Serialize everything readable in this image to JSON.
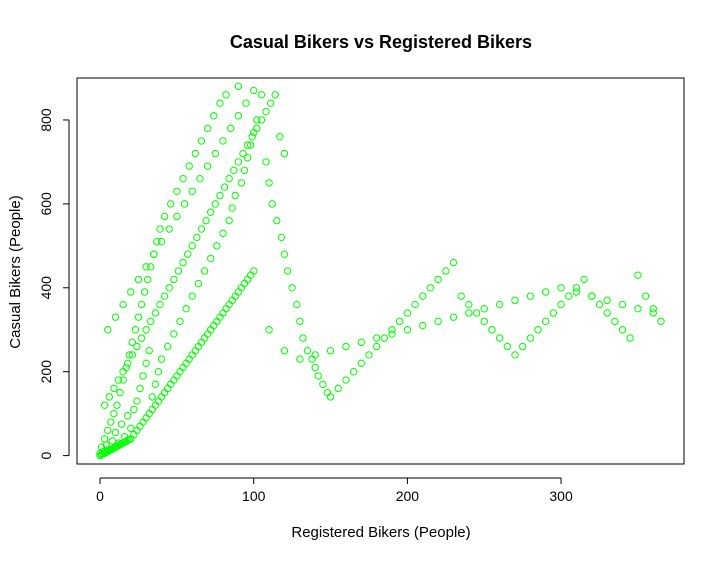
{
  "chart_data": {
    "type": "scatter",
    "title": "Casual Bikers vs Registered Bikers",
    "xlabel": "Registered Bikers (People)",
    "ylabel": "Casual Bikers (People)",
    "xlim": [
      -15,
      380
    ],
    "ylim": [
      -20,
      900
    ],
    "xticks": [
      0,
      100,
      200,
      300
    ],
    "yticks": [
      0,
      200,
      400,
      600,
      800
    ],
    "grid": false,
    "legend": "none",
    "point_color": "#00ff00",
    "series": [
      {
        "points": [
          [
            0,
            5
          ],
          [
            1,
            20
          ],
          [
            2,
            10
          ],
          [
            3,
            40
          ],
          [
            4,
            25
          ],
          [
            5,
            60
          ],
          [
            6,
            15
          ],
          [
            7,
            80
          ],
          [
            8,
            35
          ],
          [
            9,
            100
          ],
          [
            10,
            55
          ],
          [
            11,
            120
          ],
          [
            12,
            30
          ],
          [
            13,
            150
          ],
          [
            14,
            75
          ],
          [
            15,
            180
          ],
          [
            16,
            45
          ],
          [
            17,
            210
          ],
          [
            18,
            95
          ],
          [
            19,
            240
          ],
          [
            20,
            65
          ],
          [
            21,
            270
          ],
          [
            22,
            110
          ],
          [
            23,
            300
          ],
          [
            24,
            130
          ],
          [
            25,
            330
          ],
          [
            26,
            160
          ],
          [
            27,
            360
          ],
          [
            28,
            190
          ],
          [
            29,
            390
          ],
          [
            30,
            220
          ],
          [
            31,
            420
          ],
          [
            32,
            250
          ],
          [
            33,
            450
          ],
          [
            34,
            140
          ],
          [
            35,
            480
          ],
          [
            36,
            170
          ],
          [
            37,
            510
          ],
          [
            38,
            200
          ],
          [
            39,
            540
          ],
          [
            40,
            230
          ],
          [
            42,
            570
          ],
          [
            44,
            260
          ],
          [
            46,
            600
          ],
          [
            48,
            290
          ],
          [
            50,
            630
          ],
          [
            52,
            320
          ],
          [
            54,
            660
          ],
          [
            56,
            350
          ],
          [
            58,
            690
          ],
          [
            60,
            380
          ],
          [
            62,
            720
          ],
          [
            64,
            410
          ],
          [
            66,
            750
          ],
          [
            68,
            440
          ],
          [
            70,
            780
          ],
          [
            72,
            470
          ],
          [
            74,
            810
          ],
          [
            76,
            500
          ],
          [
            78,
            840
          ],
          [
            80,
            530
          ],
          [
            82,
            860
          ],
          [
            84,
            560
          ],
          [
            86,
            590
          ],
          [
            88,
            620
          ],
          [
            90,
            880
          ],
          [
            92,
            650
          ],
          [
            94,
            680
          ],
          [
            96,
            710
          ],
          [
            98,
            740
          ],
          [
            100,
            770
          ],
          [
            102,
            800
          ],
          [
            105,
            860
          ],
          [
            108,
            700
          ],
          [
            110,
            650
          ],
          [
            112,
            600
          ],
          [
            115,
            560
          ],
          [
            118,
            520
          ],
          [
            120,
            480
          ],
          [
            122,
            440
          ],
          [
            125,
            400
          ],
          [
            128,
            360
          ],
          [
            130,
            320
          ],
          [
            132,
            280
          ],
          [
            135,
            250
          ],
          [
            138,
            230
          ],
          [
            140,
            210
          ],
          [
            142,
            190
          ],
          [
            145,
            170
          ],
          [
            148,
            150
          ],
          [
            150,
            140
          ],
          [
            155,
            160
          ],
          [
            160,
            180
          ],
          [
            165,
            200
          ],
          [
            170,
            220
          ],
          [
            175,
            240
          ],
          [
            180,
            260
          ],
          [
            185,
            280
          ],
          [
            190,
            300
          ],
          [
            195,
            320
          ],
          [
            200,
            340
          ],
          [
            205,
            360
          ],
          [
            210,
            380
          ],
          [
            215,
            400
          ],
          [
            220,
            420
          ],
          [
            225,
            440
          ],
          [
            230,
            460
          ],
          [
            235,
            380
          ],
          [
            240,
            360
          ],
          [
            245,
            340
          ],
          [
            250,
            320
          ],
          [
            255,
            300
          ],
          [
            260,
            280
          ],
          [
            265,
            260
          ],
          [
            270,
            240
          ],
          [
            275,
            260
          ],
          [
            280,
            280
          ],
          [
            285,
            300
          ],
          [
            290,
            320
          ],
          [
            295,
            340
          ],
          [
            300,
            360
          ],
          [
            305,
            380
          ],
          [
            310,
            400
          ],
          [
            315,
            420
          ],
          [
            320,
            380
          ],
          [
            325,
            360
          ],
          [
            330,
            340
          ],
          [
            335,
            320
          ],
          [
            340,
            300
          ],
          [
            345,
            280
          ],
          [
            350,
            430
          ],
          [
            355,
            380
          ],
          [
            360,
            350
          ],
          [
            365,
            320
          ],
          [
            3,
            120
          ],
          [
            6,
            140
          ],
          [
            9,
            160
          ],
          [
            12,
            180
          ],
          [
            15,
            200
          ],
          [
            18,
            220
          ],
          [
            21,
            240
          ],
          [
            24,
            260
          ],
          [
            27,
            280
          ],
          [
            30,
            300
          ],
          [
            33,
            320
          ],
          [
            36,
            340
          ],
          [
            39,
            360
          ],
          [
            42,
            380
          ],
          [
            45,
            400
          ],
          [
            48,
            420
          ],
          [
            51,
            440
          ],
          [
            54,
            460
          ],
          [
            57,
            480
          ],
          [
            60,
            500
          ],
          [
            63,
            520
          ],
          [
            66,
            540
          ],
          [
            69,
            560
          ],
          [
            72,
            580
          ],
          [
            75,
            600
          ],
          [
            78,
            620
          ],
          [
            81,
            640
          ],
          [
            84,
            660
          ],
          [
            87,
            680
          ],
          [
            90,
            700
          ],
          [
            93,
            720
          ],
          [
            96,
            740
          ],
          [
            99,
            760
          ],
          [
            102,
            780
          ],
          [
            105,
            800
          ],
          [
            108,
            820
          ],
          [
            111,
            840
          ],
          [
            114,
            860
          ],
          [
            117,
            760
          ],
          [
            120,
            720
          ],
          [
            5,
            300
          ],
          [
            10,
            330
          ],
          [
            15,
            360
          ],
          [
            20,
            390
          ],
          [
            25,
            420
          ],
          [
            30,
            450
          ],
          [
            35,
            480
          ],
          [
            40,
            510
          ],
          [
            45,
            540
          ],
          [
            50,
            570
          ],
          [
            55,
            600
          ],
          [
            60,
            630
          ],
          [
            65,
            660
          ],
          [
            70,
            690
          ],
          [
            75,
            720
          ],
          [
            80,
            750
          ],
          [
            85,
            780
          ],
          [
            90,
            810
          ],
          [
            95,
            840
          ],
          [
            100,
            870
          ],
          [
            0,
            0
          ],
          [
            1,
            2
          ],
          [
            2,
            4
          ],
          [
            3,
            6
          ],
          [
            4,
            8
          ],
          [
            5,
            10
          ],
          [
            6,
            12
          ],
          [
            7,
            14
          ],
          [
            8,
            16
          ],
          [
            9,
            18
          ],
          [
            10,
            20
          ],
          [
            11,
            22
          ],
          [
            12,
            24
          ],
          [
            13,
            26
          ],
          [
            14,
            28
          ],
          [
            15,
            30
          ],
          [
            16,
            32
          ],
          [
            17,
            34
          ],
          [
            18,
            36
          ],
          [
            19,
            38
          ],
          [
            20,
            40
          ],
          [
            22,
            50
          ],
          [
            24,
            60
          ],
          [
            26,
            70
          ],
          [
            28,
            80
          ],
          [
            30,
            90
          ],
          [
            32,
            100
          ],
          [
            34,
            110
          ],
          [
            36,
            120
          ],
          [
            38,
            130
          ],
          [
            40,
            140
          ],
          [
            42,
            150
          ],
          [
            44,
            160
          ],
          [
            46,
            170
          ],
          [
            48,
            180
          ],
          [
            50,
            190
          ],
          [
            52,
            200
          ],
          [
            54,
            210
          ],
          [
            56,
            220
          ],
          [
            58,
            230
          ],
          [
            60,
            240
          ],
          [
            62,
            250
          ],
          [
            64,
            260
          ],
          [
            66,
            270
          ],
          [
            68,
            280
          ],
          [
            70,
            290
          ],
          [
            72,
            300
          ],
          [
            74,
            310
          ],
          [
            76,
            320
          ],
          [
            78,
            330
          ],
          [
            80,
            340
          ],
          [
            82,
            350
          ],
          [
            84,
            360
          ],
          [
            86,
            370
          ],
          [
            88,
            380
          ],
          [
            90,
            390
          ],
          [
            92,
            400
          ],
          [
            94,
            410
          ],
          [
            96,
            420
          ],
          [
            98,
            430
          ],
          [
            100,
            440
          ],
          [
            110,
            300
          ],
          [
            120,
            250
          ],
          [
            130,
            230
          ],
          [
            140,
            240
          ],
          [
            150,
            250
          ],
          [
            160,
            260
          ],
          [
            170,
            270
          ],
          [
            180,
            280
          ],
          [
            190,
            290
          ],
          [
            200,
            300
          ],
          [
            210,
            310
          ],
          [
            220,
            320
          ],
          [
            230,
            330
          ],
          [
            240,
            340
          ],
          [
            250,
            350
          ],
          [
            260,
            360
          ],
          [
            270,
            370
          ],
          [
            280,
            380
          ],
          [
            290,
            390
          ],
          [
            300,
            400
          ],
          [
            310,
            390
          ],
          [
            320,
            380
          ],
          [
            330,
            370
          ],
          [
            340,
            360
          ],
          [
            350,
            350
          ],
          [
            360,
            340
          ]
        ]
      }
    ]
  }
}
